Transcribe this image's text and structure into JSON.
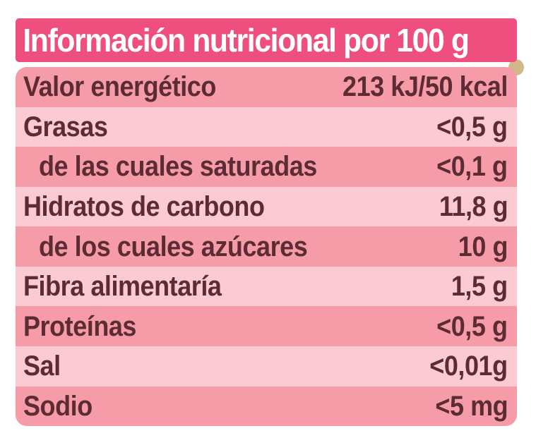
{
  "header": {
    "title": "Información nutricional por 100 g"
  },
  "table": {
    "rows": [
      {
        "label": "Valor energético",
        "value": "213 kJ/50 kcal",
        "indent": false,
        "shade": "medium"
      },
      {
        "label": "Grasas",
        "value": "<0,5 g",
        "indent": false,
        "shade": "light"
      },
      {
        "label": "de las cuales saturadas",
        "value": "<0,1 g",
        "indent": true,
        "shade": "medium"
      },
      {
        "label": "Hidratos de carbono",
        "value": "11,8 g",
        "indent": false,
        "shade": "light"
      },
      {
        "label": "de los cuales azúcares",
        "value": "10 g",
        "indent": true,
        "shade": "medium"
      },
      {
        "label": "Fibra alimentaría",
        "value": "1,5 g",
        "indent": false,
        "shade": "light"
      },
      {
        "label": "Proteínas",
        "value": "<0,5 g",
        "indent": false,
        "shade": "medium"
      },
      {
        "label": "Sal",
        "value": "<0,01g",
        "indent": false,
        "shade": "light"
      },
      {
        "label": "Sodio",
        "value": "<5 mg",
        "indent": false,
        "shade": "medium"
      }
    ]
  },
  "colors": {
    "background": "#FFFFFF",
    "header_bg": "#EE4F7E",
    "header_text": "#FFFFFF",
    "row_medium": "#F59CA8",
    "row_light": "#FBCBD4",
    "text": "#5C2B34",
    "dot": "#D2B98B"
  }
}
